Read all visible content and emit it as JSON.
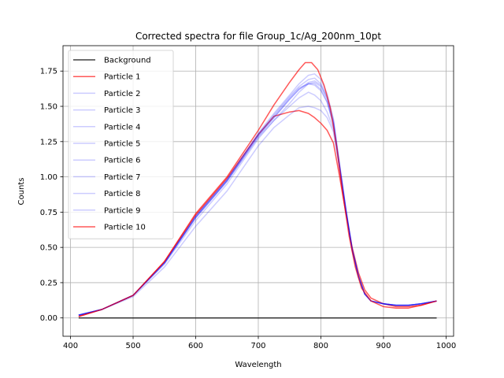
{
  "chart_data": {
    "type": "line",
    "title": "Corrected spectra for file Group_1c/Ag_200nm_10pt",
    "xlabel": "Wavelength",
    "ylabel": "Counts",
    "xlim": [
      388,
      1012
    ],
    "ylim": [
      -0.13,
      1.93
    ],
    "xticks": [
      400,
      500,
      600,
      700,
      800,
      900,
      1000
    ],
    "yticks": [
      0.0,
      0.25,
      0.5,
      0.75,
      1.0,
      1.25,
      1.5,
      1.75
    ],
    "ytick_labels": [
      "0.00",
      "0.25",
      "0.50",
      "0.75",
      "1.00",
      "1.25",
      "1.50",
      "1.75"
    ],
    "grid": true,
    "legend_position": "upper-left",
    "series": [
      {
        "name": "Background",
        "color": "#000000",
        "opacity": 0.75,
        "x": [
          413,
          985
        ],
        "y": [
          0,
          0
        ]
      },
      {
        "name": "Particle 1",
        "color": "#ff0000",
        "opacity": 0.65,
        "x": [
          413,
          450,
          500,
          550,
          600,
          650,
          700,
          725,
          750,
          765,
          780,
          790,
          800,
          810,
          820,
          830,
          840,
          850,
          860,
          870,
          880,
          900,
          920,
          940,
          960,
          985
        ],
        "y": [
          0.01,
          0.06,
          0.16,
          0.4,
          0.73,
          0.99,
          1.3,
          1.43,
          1.46,
          1.47,
          1.45,
          1.42,
          1.38,
          1.33,
          1.24,
          1.0,
          0.74,
          0.5,
          0.32,
          0.2,
          0.14,
          0.1,
          0.08,
          0.08,
          0.09,
          0.12
        ]
      },
      {
        "name": "Particle 2",
        "color": "#0000ff",
        "opacity": 0.2,
        "x": [
          413,
          450,
          500,
          550,
          600,
          650,
          700,
          725,
          750,
          765,
          780,
          790,
          800,
          810,
          820,
          830,
          840,
          850,
          860,
          870,
          880,
          900,
          920,
          940,
          960,
          985
        ],
        "y": [
          0.02,
          0.06,
          0.16,
          0.39,
          0.71,
          0.97,
          1.28,
          1.4,
          1.5,
          1.56,
          1.6,
          1.58,
          1.54,
          1.46,
          1.34,
          1.06,
          0.76,
          0.48,
          0.29,
          0.17,
          0.12,
          0.1,
          0.09,
          0.09,
          0.1,
          0.12
        ]
      },
      {
        "name": "Particle 3",
        "color": "#0000ff",
        "opacity": 0.2,
        "x": [
          413,
          450,
          500,
          550,
          600,
          650,
          700,
          725,
          750,
          765,
          780,
          790,
          800,
          810,
          820,
          830,
          840,
          850,
          860,
          870,
          880,
          900,
          920,
          940,
          960,
          985
        ],
        "y": [
          0.02,
          0.06,
          0.16,
          0.39,
          0.72,
          0.98,
          1.3,
          1.44,
          1.57,
          1.64,
          1.69,
          1.7,
          1.66,
          1.57,
          1.4,
          1.08,
          0.77,
          0.49,
          0.3,
          0.17,
          0.12,
          0.1,
          0.09,
          0.09,
          0.1,
          0.12
        ]
      },
      {
        "name": "Particle 4",
        "color": "#0000ff",
        "opacity": 0.2,
        "x": [
          413,
          450,
          500,
          550,
          600,
          650,
          700,
          725,
          750,
          765,
          780,
          790,
          800,
          810,
          820,
          830,
          840,
          850,
          860,
          870,
          880,
          900,
          920,
          940,
          960,
          985
        ],
        "y": [
          0.02,
          0.06,
          0.16,
          0.39,
          0.72,
          0.98,
          1.31,
          1.45,
          1.58,
          1.66,
          1.72,
          1.73,
          1.69,
          1.59,
          1.41,
          1.09,
          0.77,
          0.49,
          0.3,
          0.17,
          0.12,
          0.1,
          0.09,
          0.09,
          0.1,
          0.12
        ]
      },
      {
        "name": "Particle 5",
        "color": "#0000ff",
        "opacity": 0.2,
        "x": [
          413,
          450,
          500,
          550,
          600,
          650,
          700,
          725,
          750,
          765,
          780,
          790,
          800,
          810,
          820,
          830,
          840,
          850,
          860,
          870,
          880,
          900,
          920,
          940,
          960,
          985
        ],
        "y": [
          0.02,
          0.06,
          0.16,
          0.38,
          0.69,
          0.95,
          1.27,
          1.4,
          1.52,
          1.6,
          1.66,
          1.67,
          1.64,
          1.55,
          1.38,
          1.07,
          0.76,
          0.48,
          0.29,
          0.17,
          0.12,
          0.1,
          0.09,
          0.09,
          0.1,
          0.12
        ]
      },
      {
        "name": "Particle 6",
        "color": "#0000ff",
        "opacity": 0.2,
        "x": [
          413,
          450,
          500,
          550,
          600,
          650,
          700,
          725,
          750,
          765,
          780,
          790,
          800,
          810,
          820,
          830,
          840,
          850,
          860,
          870,
          880,
          900,
          920,
          940,
          960,
          985
        ],
        "y": [
          0.02,
          0.06,
          0.16,
          0.39,
          0.71,
          0.97,
          1.29,
          1.42,
          1.55,
          1.62,
          1.67,
          1.68,
          1.65,
          1.56,
          1.39,
          1.08,
          0.77,
          0.49,
          0.3,
          0.17,
          0.12,
          0.1,
          0.09,
          0.09,
          0.1,
          0.12
        ]
      },
      {
        "name": "Particle 7",
        "color": "#0000ff",
        "opacity": 0.2,
        "x": [
          413,
          450,
          500,
          550,
          600,
          650,
          700,
          725,
          750,
          765,
          780,
          790,
          800,
          810,
          820,
          830,
          840,
          850,
          860,
          870,
          880,
          900,
          920,
          940,
          960,
          985
        ],
        "y": [
          0.02,
          0.06,
          0.16,
          0.39,
          0.72,
          0.98,
          1.3,
          1.43,
          1.56,
          1.63,
          1.66,
          1.65,
          1.61,
          1.53,
          1.37,
          1.07,
          0.76,
          0.48,
          0.29,
          0.17,
          0.12,
          0.1,
          0.09,
          0.09,
          0.1,
          0.12
        ]
      },
      {
        "name": "Particle 8",
        "color": "#0000ff",
        "opacity": 0.2,
        "x": [
          413,
          450,
          500,
          550,
          600,
          650,
          700,
          725,
          750,
          765,
          780,
          790,
          800,
          810,
          820,
          830,
          840,
          850,
          860,
          870,
          880,
          900,
          920,
          940,
          960,
          985
        ],
        "y": [
          0.02,
          0.06,
          0.15,
          0.36,
          0.65,
          0.9,
          1.22,
          1.35,
          1.44,
          1.49,
          1.5,
          1.49,
          1.47,
          1.42,
          1.32,
          1.05,
          0.75,
          0.48,
          0.29,
          0.17,
          0.12,
          0.1,
          0.09,
          0.09,
          0.1,
          0.12
        ]
      },
      {
        "name": "Particle 9",
        "color": "#0000ff",
        "opacity": 0.2,
        "x": [
          413,
          450,
          500,
          550,
          600,
          650,
          700,
          725,
          750,
          765,
          780,
          790,
          800,
          810,
          820,
          830,
          840,
          850,
          860,
          870,
          880,
          900,
          920,
          940,
          960,
          985
        ],
        "y": [
          0.02,
          0.06,
          0.16,
          0.39,
          0.71,
          0.97,
          1.29,
          1.42,
          1.55,
          1.62,
          1.66,
          1.66,
          1.62,
          1.53,
          1.37,
          1.07,
          0.76,
          0.48,
          0.29,
          0.17,
          0.12,
          0.1,
          0.09,
          0.09,
          0.1,
          0.12
        ]
      },
      {
        "name": "Particle 10",
        "color": "#ff0000",
        "opacity": 0.65,
        "x": [
          413,
          450,
          500,
          550,
          600,
          650,
          700,
          725,
          750,
          765,
          775,
          785,
          795,
          805,
          815,
          825,
          835,
          845,
          855,
          865,
          880,
          900,
          920,
          940,
          960,
          985
        ],
        "y": [
          0.01,
          0.06,
          0.16,
          0.4,
          0.74,
          1.0,
          1.33,
          1.51,
          1.67,
          1.76,
          1.81,
          1.81,
          1.76,
          1.65,
          1.49,
          1.22,
          0.88,
          0.58,
          0.36,
          0.21,
          0.12,
          0.08,
          0.07,
          0.07,
          0.09,
          0.12
        ]
      }
    ]
  }
}
